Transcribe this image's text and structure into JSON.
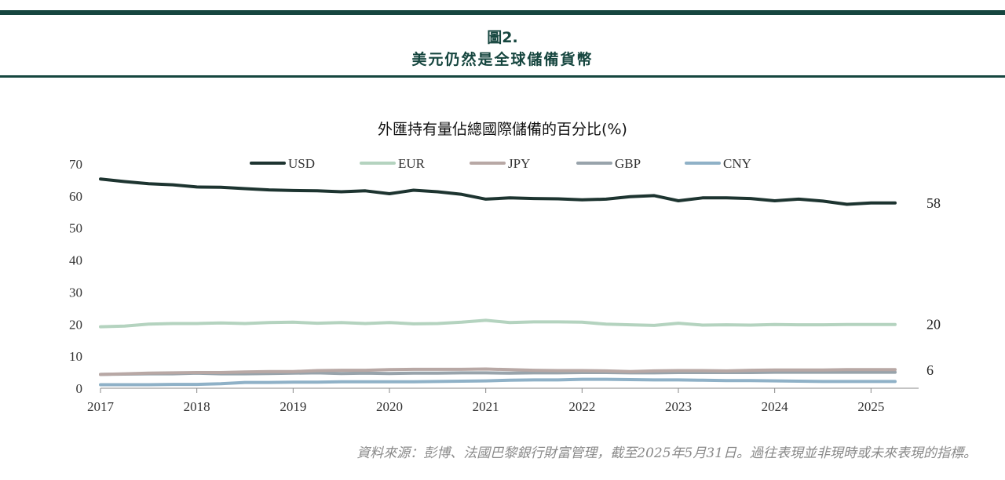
{
  "header": {
    "figure_number": "圖2.",
    "figure_title": "美元仍然是全球儲備貨幣"
  },
  "footer": {
    "source": "資料來源：彭博、法國巴黎銀行財富管理，截至2025年5月31日。過往表現並非現時或未來表現的指標。"
  },
  "colors": {
    "rule": "#16463f",
    "USD": "#1d3430",
    "EUR": "#b4d3bf",
    "JPY": "#b8a8a5",
    "GBP": "#98a3ab",
    "CNY": "#8fb1c7"
  },
  "chart_data": {
    "type": "line",
    "title": "外匯持有量佔總國際儲備的百分比(%)",
    "xlabel": "",
    "ylabel": "",
    "ylim": [
      0,
      70
    ],
    "yticks": [
      0,
      10,
      20,
      30,
      40,
      50,
      60,
      70
    ],
    "xlim": [
      2017.0,
      2025.25
    ],
    "xticks": [
      "2017",
      "2018",
      "2019",
      "2020",
      "2021",
      "2022",
      "2023",
      "2024",
      "2025"
    ],
    "legend": "top",
    "grid": false,
    "x": [
      2017.0,
      2017.25,
      2017.5,
      2017.75,
      2018.0,
      2018.25,
      2018.5,
      2018.75,
      2019.0,
      2019.25,
      2019.5,
      2019.75,
      2020.0,
      2020.25,
      2020.5,
      2020.75,
      2021.0,
      2021.25,
      2021.5,
      2021.75,
      2022.0,
      2022.25,
      2022.5,
      2022.75,
      2023.0,
      2023.25,
      2023.5,
      2023.75,
      2024.0,
      2024.25,
      2024.5,
      2024.75,
      2025.0,
      2025.25
    ],
    "series": [
      {
        "name": "USD",
        "end_label": "58",
        "values": [
          65.3,
          64.5,
          63.8,
          63.5,
          62.8,
          62.7,
          62.3,
          61.9,
          61.7,
          61.6,
          61.3,
          61.6,
          60.7,
          61.8,
          61.3,
          60.5,
          59.0,
          59.4,
          59.2,
          59.1,
          58.8,
          59.0,
          59.8,
          60.1,
          58.5,
          59.4,
          59.4,
          59.2,
          58.5,
          59.0,
          58.4,
          57.4,
          57.8,
          57.8
        ]
      },
      {
        "name": "EUR",
        "end_label": "20",
        "values": [
          19.2,
          19.4,
          20.0,
          20.2,
          20.2,
          20.4,
          20.2,
          20.5,
          20.6,
          20.3,
          20.5,
          20.2,
          20.5,
          20.1,
          20.2,
          20.6,
          21.2,
          20.5,
          20.7,
          20.7,
          20.6,
          20.0,
          19.8,
          19.6,
          20.3,
          19.7,
          19.8,
          19.7,
          19.9,
          19.8,
          19.8,
          19.9,
          19.9,
          19.9
        ]
      },
      {
        "name": "JPY",
        "end_label": "6",
        "values": [
          4.3,
          4.5,
          4.7,
          4.8,
          4.9,
          4.9,
          5.1,
          5.2,
          5.2,
          5.5,
          5.6,
          5.6,
          5.8,
          5.9,
          5.9,
          5.9,
          6.0,
          5.8,
          5.6,
          5.5,
          5.5,
          5.4,
          5.2,
          5.4,
          5.5,
          5.5,
          5.4,
          5.6,
          5.7,
          5.7,
          5.7,
          5.8,
          5.8,
          5.8
        ]
      },
      {
        "name": "GBP",
        "end_label": "",
        "values": [
          4.3,
          4.4,
          4.5,
          4.5,
          4.7,
          4.5,
          4.5,
          4.6,
          4.7,
          4.8,
          4.6,
          4.7,
          4.6,
          4.7,
          4.7,
          4.8,
          4.8,
          4.7,
          4.8,
          4.8,
          4.9,
          4.9,
          4.8,
          4.8,
          4.9,
          4.9,
          4.9,
          4.9,
          5.0,
          5.0,
          5.0,
          5.0,
          5.0,
          5.0
        ]
      },
      {
        "name": "CNY",
        "end_label": "",
        "values": [
          1.1,
          1.1,
          1.1,
          1.2,
          1.2,
          1.4,
          1.8,
          1.8,
          1.9,
          1.9,
          2.0,
          2.0,
          2.0,
          2.0,
          2.1,
          2.2,
          2.3,
          2.5,
          2.6,
          2.6,
          2.8,
          2.8,
          2.7,
          2.6,
          2.6,
          2.5,
          2.4,
          2.4,
          2.3,
          2.2,
          2.1,
          2.1,
          2.1,
          2.1
        ]
      }
    ]
  }
}
